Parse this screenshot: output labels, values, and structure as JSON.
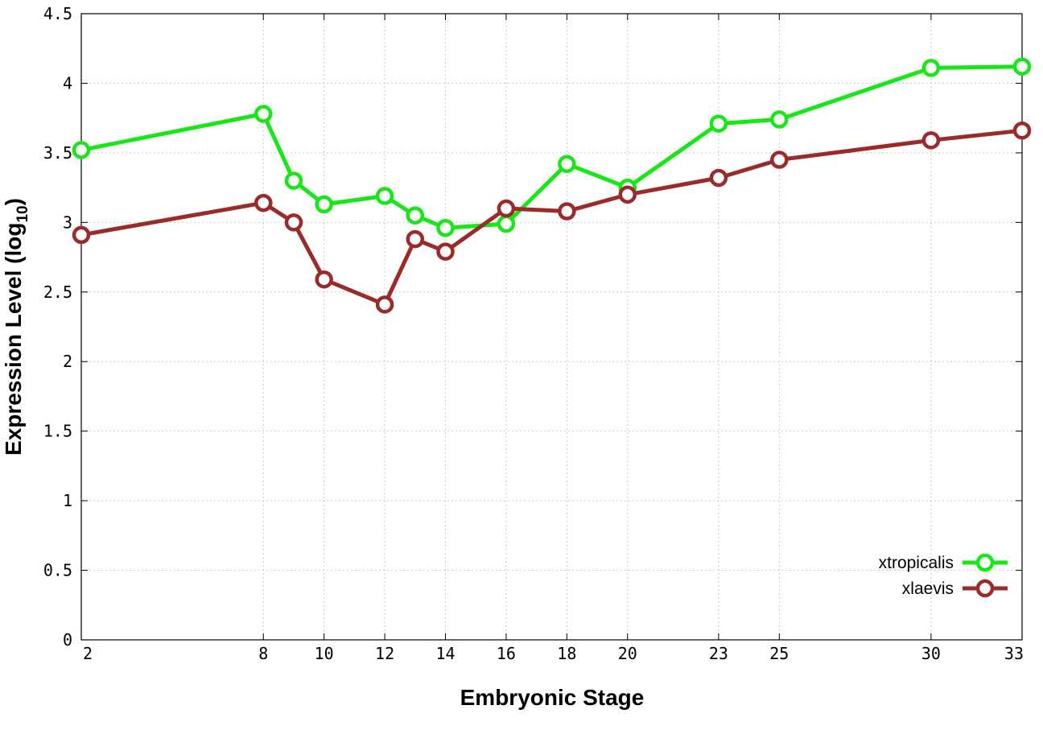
{
  "chart_data": {
    "type": "line",
    "xlabel": "Embryonic Stage",
    "ylabel_main": "Expression Level (log",
    "ylabel_sub": "10",
    "ylabel_close": ")",
    "x": [
      2,
      8,
      9,
      10,
      12,
      13,
      14,
      16,
      18,
      20,
      23,
      25,
      30,
      33
    ],
    "x_tick_labels": [
      "2",
      "8",
      "10",
      "12",
      "14",
      "16",
      "18",
      "20",
      "23",
      "25",
      "30",
      "33"
    ],
    "x_tick_values": [
      2,
      8,
      10,
      12,
      14,
      16,
      18,
      20,
      23,
      25,
      30,
      33
    ],
    "xlim": [
      2,
      33
    ],
    "ylim": [
      0,
      4.5
    ],
    "y_tick_values": [
      0,
      0.5,
      1,
      1.5,
      2,
      2.5,
      3,
      3.5,
      4,
      4.5
    ],
    "y_tick_labels": [
      "0",
      "0.5",
      "1",
      "1.5",
      "2",
      "2.5",
      "3",
      "3.5",
      "4",
      "4.5"
    ],
    "grid": true,
    "legend_position": "bottom-right",
    "series": [
      {
        "name": "xtropicalis",
        "color": "#19e619",
        "values": [
          3.52,
          3.78,
          3.3,
          3.13,
          3.19,
          3.05,
          2.96,
          2.99,
          3.42,
          3.25,
          3.71,
          3.74,
          4.11,
          4.12
        ]
      },
      {
        "name": "xlaevis",
        "color": "#9b2a2a",
        "values": [
          2.91,
          3.14,
          3.0,
          2.59,
          2.41,
          2.88,
          2.79,
          3.1,
          3.08,
          3.2,
          3.32,
          3.45,
          3.59,
          3.66
        ]
      }
    ]
  }
}
